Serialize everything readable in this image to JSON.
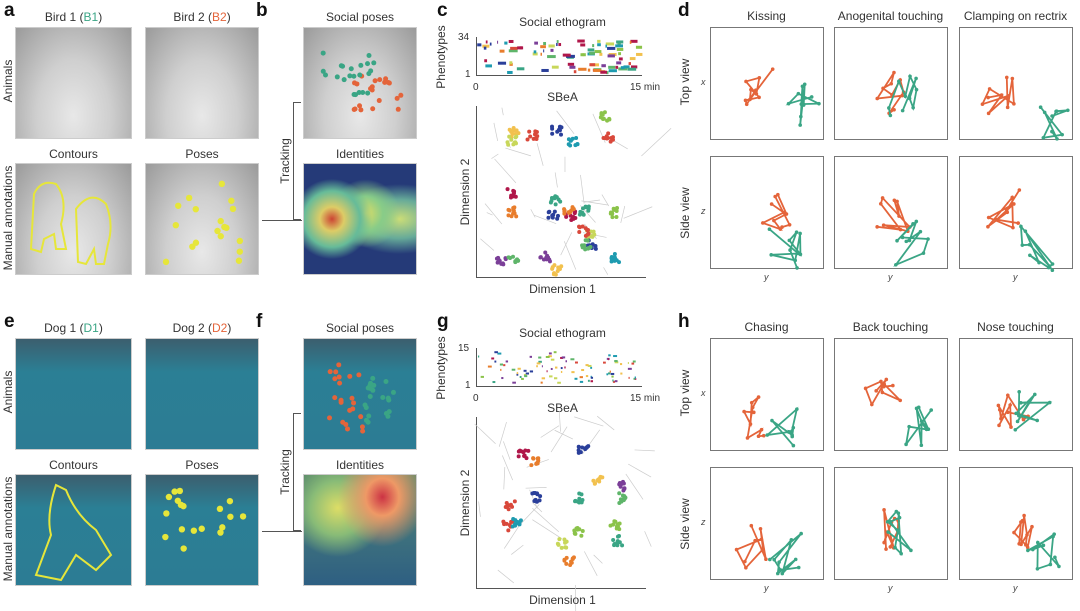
{
  "colors": {
    "animal1": "#3aa585",
    "animal2": "#e4643a",
    "contour": "#e6e63a"
  },
  "top": {
    "a": {
      "label": "a",
      "col1": {
        "prefix": "Bird 1 (",
        "id": "B1",
        "suffix": ")"
      },
      "col2": {
        "prefix": "Bird 2 (",
        "id": "B2",
        "suffix": ")"
      },
      "row1": "Animals",
      "row2": "Manual annotations",
      "contours": "Contours",
      "poses": "Poses"
    },
    "b": {
      "label": "b",
      "social_poses": "Social poses",
      "identities": "Identities",
      "tracking": "Tracking"
    },
    "c": {
      "label": "c",
      "ethogram_title": "Social ethogram",
      "ylabel": "Phenotypes",
      "ymax": "34",
      "ymin": "1",
      "xmin": "0",
      "xmax": "15 min",
      "embed_title": "SBeA",
      "dim1": "Dimension 1",
      "dim2": "Dimension 2"
    },
    "d": {
      "label": "d",
      "titles": [
        "Kissing",
        "Anogenital touching",
        "Clamping on rectrix"
      ],
      "row1": "Top view",
      "row2": "Side view",
      "axis_top": "x",
      "axis_side": "z",
      "axis_x": "y"
    }
  },
  "bottom": {
    "a": {
      "label": "e",
      "col1": {
        "prefix": "Dog 1 (",
        "id": "D1",
        "suffix": ")"
      },
      "col2": {
        "prefix": "Dog 2 (",
        "id": "D2",
        "suffix": ")"
      },
      "row1": "Animals",
      "row2": "Manual annotations",
      "contours": "Contours",
      "poses": "Poses"
    },
    "b": {
      "label": "f",
      "social_poses": "Social poses",
      "identities": "Identities",
      "tracking": "Tracking"
    },
    "c": {
      "label": "g",
      "ethogram_title": "Social ethogram",
      "ylabel": "Phenotypes",
      "ymax": "15",
      "ymin": "1",
      "xmin": "0",
      "xmax": "15 min",
      "embed_title": "SBeA",
      "dim1": "Dimension 1",
      "dim2": "Dimension 2"
    },
    "d": {
      "label": "h",
      "titles": [
        "Chasing",
        "Back touching",
        "Nose touching"
      ],
      "row1": "Top view",
      "row2": "Side view",
      "axis_top": "x",
      "axis_side": "z",
      "axis_x": "y"
    }
  }
}
